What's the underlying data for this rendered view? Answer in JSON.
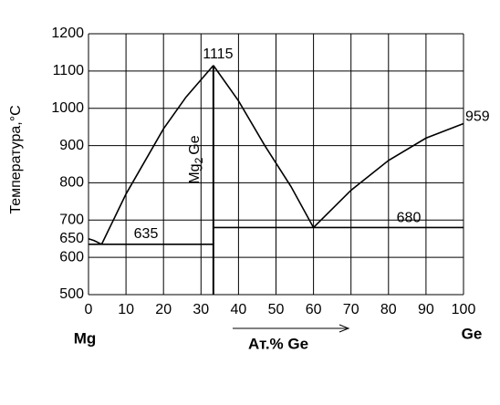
{
  "chart_data": {
    "type": "line",
    "y_label": "Температура,°С",
    "left_label": "Mg",
    "right_label": "Ge",
    "x_label": "Ат.% Ge",
    "xlim": [
      0,
      100
    ],
    "xticks": [
      0,
      10,
      20,
      30,
      40,
      50,
      60,
      70,
      80,
      90,
      100
    ],
    "ylim": [
      500,
      1200
    ],
    "yticks": [
      500,
      600,
      700,
      800,
      900,
      1000,
      1100,
      1200
    ],
    "grid": true,
    "series": [
      {
        "color": "#000000",
        "x": [
          0,
          1.5,
          3.5
        ],
        "values": [
          650,
          645,
          635
        ]
      },
      {
        "color": "#000000",
        "x": [
          3.5,
          10,
          20,
          26,
          33.3
        ],
        "values": [
          635,
          770,
          945,
          1030,
          1115
        ]
      },
      {
        "color": "#000000",
        "x": [
          33.3,
          40,
          47,
          54,
          60
        ],
        "values": [
          1115,
          1020,
          900,
          790,
          680
        ]
      },
      {
        "color": "#000000",
        "x": [
          60,
          70,
          80,
          90,
          100
        ],
        "values": [
          680,
          780,
          860,
          920,
          959
        ]
      }
    ],
    "eutectics": [
      {
        "value": 635,
        "x": [
          0,
          33.3
        ]
      },
      {
        "value": 680,
        "x": [
          33.3,
          100
        ]
      }
    ],
    "compound": {
      "formula": "Mg",
      "subscript": "2",
      "suffix": "Ge",
      "x": 33.3
    }
  }
}
